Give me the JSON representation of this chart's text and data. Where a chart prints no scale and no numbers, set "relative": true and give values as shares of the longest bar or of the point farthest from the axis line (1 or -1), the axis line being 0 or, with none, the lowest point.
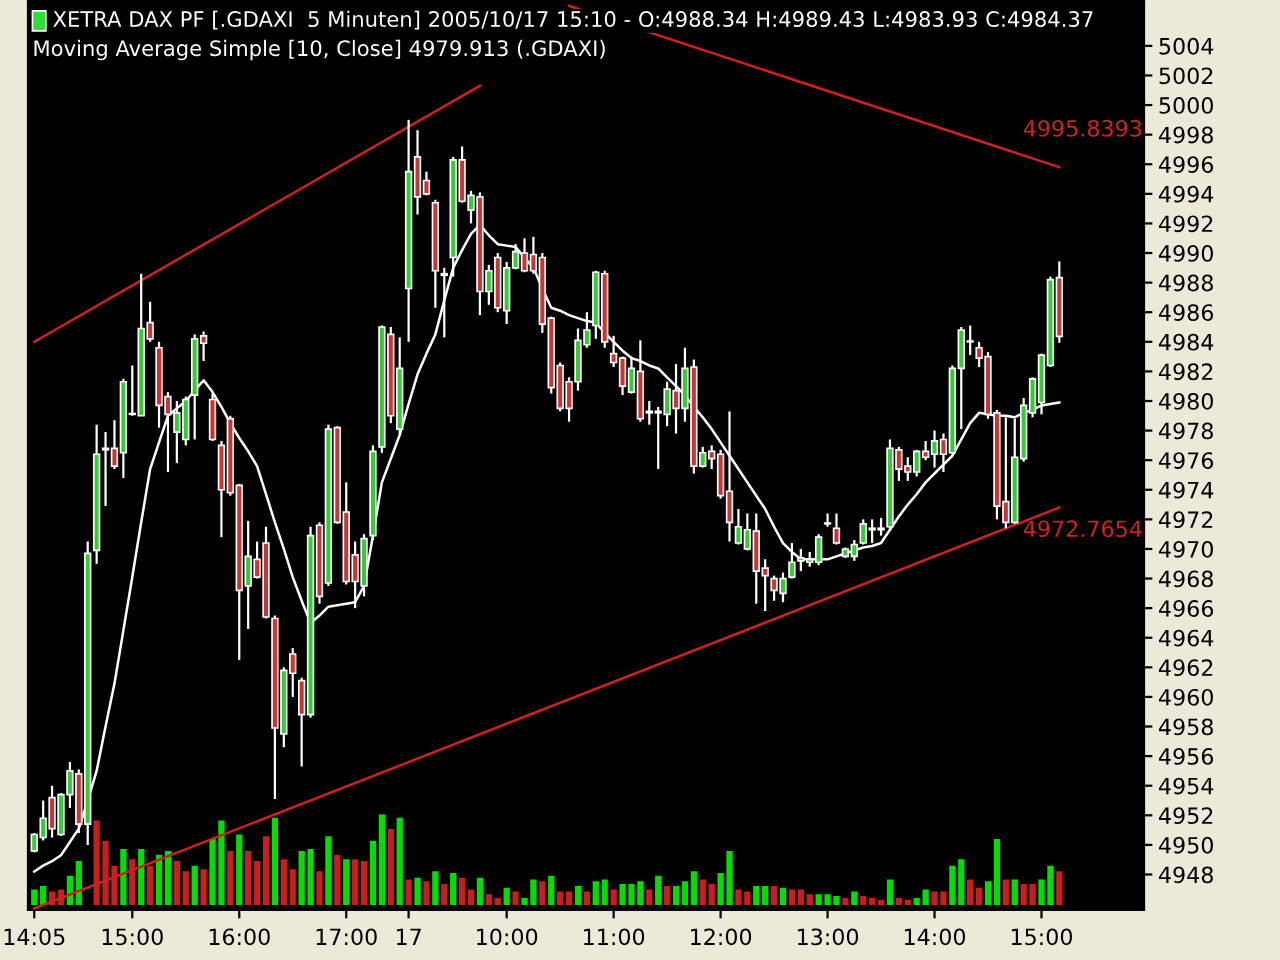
{
  "chart_data": [
    {
      "type": "candlestick",
      "title": "XETRA DAX PF [.GDAXI  5 Minuten] 2005/10/17 15:10 - O:4988.34 H:4989.43 L:4983.93 C:4984.37",
      "subtitle": "Moving Average Simple [10, Close] 4979.913 (.GDAXI)",
      "categories": [
        "14:05",
        null,
        null,
        null,
        null,
        null,
        null,
        null,
        null,
        null,
        null,
        "15:00",
        null,
        null,
        null,
        null,
        null,
        null,
        null,
        null,
        null,
        null,
        null,
        "16:00",
        null,
        null,
        null,
        null,
        null,
        null,
        null,
        null,
        null,
        null,
        null,
        "17:00",
        null,
        null,
        null,
        null,
        null,
        null,
        "17",
        null,
        null,
        null,
        null,
        null,
        null,
        null,
        null,
        null,
        null,
        "10:00",
        null,
        null,
        null,
        null,
        null,
        null,
        null,
        null,
        null,
        null,
        null,
        "11:00",
        null,
        null,
        null,
        null,
        null,
        null,
        null,
        null,
        null,
        null,
        null,
        "12:00",
        null,
        null,
        null,
        null,
        null,
        null,
        null,
        null,
        null,
        null,
        null,
        "13:00",
        null,
        null,
        null,
        null,
        null,
        null,
        null,
        null,
        null,
        null,
        null,
        "14:00",
        null,
        null,
        null,
        null,
        null,
        null,
        null,
        null,
        null,
        null,
        null,
        "15:00",
        null,
        null
      ],
      "ylim": [
        4945.6,
        5007.1
      ],
      "yticks": [
        4948,
        4950,
        4952,
        4954,
        4956,
        4958,
        4960,
        4962,
        4964,
        4966,
        4968,
        4970,
        4972,
        4974,
        4976,
        4978,
        4980,
        4982,
        4984,
        4986,
        4988,
        4990,
        4992,
        4994,
        4996,
        4998,
        5000,
        5002,
        5004
      ],
      "series": [
        {
          "type": "candlestick",
          "ohlc": [
            [
              4949.6,
              4950.8,
              4949.5,
              4950.7
            ],
            [
              4950.5,
              4953.0,
              4950.3,
              4951.8
            ],
            [
              4953.2,
              4954.0,
              4950.5,
              4951.1
            ],
            [
              4950.7,
              4953.5,
              4950.6,
              4953.4
            ],
            [
              4953.4,
              4955.6,
              4952.5,
              4955.0
            ],
            [
              4954.8,
              4955.1,
              4950.8,
              4951.4
            ],
            [
              4951.4,
              4970.5,
              4950.0,
              4969.7
            ],
            [
              4969.9,
              4978.4,
              4969.0,
              4976.4
            ],
            [
              4976.7,
              4977.9,
              4972.9,
              4976.8
            ],
            [
              4976.8,
              4978.7,
              4975.4,
              4975.6
            ],
            [
              4976.5,
              4981.5,
              4974.8,
              4981.3
            ],
            [
              4979.1,
              4982.4,
              4979.0,
              4979.1
            ],
            [
              4979.0,
              4988.6,
              4979.0,
              4984.9
            ],
            [
              4985.3,
              4986.7,
              4984.0,
              4984.2
            ],
            [
              4983.6,
              4984.0,
              4978.2,
              4979.7
            ],
            [
              4980.3,
              4980.6,
              4975.2,
              4979.1
            ],
            [
              4977.9,
              4980.0,
              4975.8,
              4979.2
            ],
            [
              4977.4,
              4980.3,
              4977.0,
              4980.1
            ],
            [
              4980.4,
              4984.5,
              4977.4,
              4984.2
            ],
            [
              4984.4,
              4984.7,
              4982.7,
              4983.9
            ],
            [
              4980.1,
              4980.5,
              4977.3,
              4977.4
            ],
            [
              4977.0,
              4977.3,
              4970.8,
              4974.0
            ],
            [
              4978.8,
              4979.0,
              4973.6,
              4973.8
            ],
            [
              4974.3,
              4974.4,
              4962.5,
              4967.2
            ],
            [
              4967.5,
              4971.9,
              4964.6,
              4969.5
            ],
            [
              4969.3,
              4970.5,
              4968.0,
              4968.1
            ],
            [
              4970.4,
              4971.5,
              4965.3,
              4965.4
            ],
            [
              4965.3,
              4965.5,
              4953.1,
              4957.9
            ],
            [
              4957.5,
              4962.0,
              4956.6,
              4961.8
            ],
            [
              4962.9,
              4963.3,
              4960.0,
              4961.6
            ],
            [
              4961.1,
              4961.3,
              4955.3,
              4958.8
            ],
            [
              4958.8,
              4971.5,
              4958.6,
              4970.9
            ],
            [
              4971.6,
              4971.8,
              4966.3,
              4966.8
            ],
            [
              4967.7,
              4978.4,
              4967.5,
              4978.1
            ],
            [
              4978.2,
              4978.3,
              4971.7,
              4971.8
            ],
            [
              4972.5,
              4974.5,
              4967.6,
              4967.8
            ],
            [
              4969.6,
              4970.5,
              4966.0,
              4967.8
            ],
            [
              4967.5,
              4971.0,
              4966.8,
              4970.7
            ],
            [
              4970.9,
              4977.0,
              4970.6,
              4976.6
            ],
            [
              4976.9,
              4985.1,
              4976.5,
              4985.0
            ],
            [
              4984.5,
              4985.0,
              4978.5,
              4979.0
            ],
            [
              4978.1,
              4984.3,
              4977.8,
              4982.2
            ],
            [
              4987.6,
              4999.0,
              4984.0,
              4995.5
            ],
            [
              4996.5,
              4998.3,
              4992.6,
              4993.8
            ],
            [
              4994.9,
              4995.5,
              4993.9,
              4994.0
            ],
            [
              4993.4,
              4993.6,
              4986.3,
              4988.8
            ],
            [
              4988.6,
              4989.0,
              4984.3,
              4988.5
            ],
            [
              4989.7,
              4996.5,
              4988.4,
              4996.3
            ],
            [
              4996.3,
              4997.2,
              4993.4,
              4993.5
            ],
            [
              4992.9,
              4994.2,
              4992.0,
              4993.9
            ],
            [
              4993.8,
              4994.1,
              4985.8,
              4987.4
            ],
            [
              4987.4,
              4989.2,
              4986.5,
              4988.8
            ],
            [
              4989.7,
              4990.0,
              4986.0,
              4986.3
            ],
            [
              4986.1,
              4989.4,
              4985.2,
              4989.0
            ],
            [
              4989.0,
              4990.6,
              4988.9,
              4990.1
            ],
            [
              4990.0,
              4991.0,
              4988.7,
              4988.8
            ],
            [
              4989.9,
              4991.1,
              4988.6,
              4988.8
            ],
            [
              4989.7,
              4990.0,
              4984.6,
              4985.2
            ],
            [
              4985.6,
              4985.7,
              4980.5,
              4980.9
            ],
            [
              4982.4,
              4982.6,
              4979.3,
              4979.5
            ],
            [
              4981.3,
              4981.6,
              4978.6,
              4979.5
            ],
            [
              4981.3,
              4984.9,
              4980.7,
              4984.1
            ],
            [
              4983.8,
              4986.0,
              4983.6,
              4984.8
            ],
            [
              4985.1,
              4988.8,
              4984.2,
              4988.7
            ],
            [
              4988.6,
              4988.8,
              4983.6,
              4984.0
            ],
            [
              4983.2,
              4984.4,
              4982.3,
              4982.6
            ],
            [
              4982.9,
              4983.0,
              4980.4,
              4981.0
            ],
            [
              4980.6,
              4983.0,
              4980.5,
              4982.2
            ],
            [
              4982.0,
              4984.1,
              4978.6,
              4978.8
            ],
            [
              4979.2,
              4980.0,
              4978.4,
              4979.3
            ],
            [
              4979.2,
              4979.6,
              4975.4,
              4979.3
            ],
            [
              4979.1,
              4981.3,
              4978.3,
              4980.8
            ],
            [
              4980.7,
              4982.5,
              4977.8,
              4979.5
            ],
            [
              4979.5,
              4983.6,
              4978.6,
              4982.2
            ],
            [
              4982.3,
              4982.8,
              4975.1,
              4975.6
            ],
            [
              4975.6,
              4976.9,
              4975.5,
              4976.5
            ],
            [
              4976.6,
              4977.0,
              4975.4,
              4976.1
            ],
            [
              4976.4,
              4976.7,
              4973.4,
              4973.6
            ],
            [
              4973.9,
              4979.3,
              4970.5,
              4971.8
            ],
            [
              4970.4,
              4972.7,
              4970.3,
              4971.5
            ],
            [
              4970.0,
              4972.4,
              4969.9,
              4971.3
            ],
            [
              4971.2,
              4972.4,
              4966.3,
              4968.5
            ],
            [
              4968.7,
              4969.3,
              4965.8,
              4968.2
            ],
            [
              4968.0,
              4968.2,
              4966.5,
              4967.2
            ],
            [
              4967.0,
              4968.4,
              4966.4,
              4968.0
            ],
            [
              4968.1,
              4970.4,
              4968.0,
              4969.1
            ],
            [
              4969.2,
              4970.0,
              4968.5,
              4969.4
            ],
            [
              4969.1,
              4969.8,
              4968.8,
              4969.3
            ],
            [
              4969.1,
              4971.0,
              4968.9,
              4970.8
            ],
            [
              4971.7,
              4972.4,
              4971.5,
              4971.7
            ],
            [
              4971.4,
              4972.4,
              4970.3,
              4970.4
            ],
            [
              4969.5,
              4970.1,
              4969.4,
              4970.0
            ],
            [
              4969.5,
              4970.6,
              4969.2,
              4970.3
            ],
            [
              4970.4,
              4972.0,
              4970.3,
              4971.7
            ],
            [
              4971.3,
              4972.0,
              4970.4,
              4971.4
            ],
            [
              4971.3,
              4972.1,
              4970.9,
              4971.4
            ],
            [
              4971.5,
              4977.4,
              4971.3,
              4976.8
            ],
            [
              4976.7,
              4976.9,
              4974.6,
              4975.4
            ],
            [
              4975.6,
              4976.2,
              4974.6,
              4975.2
            ],
            [
              4975.2,
              4976.7,
              4974.9,
              4976.6
            ],
            [
              4976.6,
              4977.3,
              4976.0,
              4976.2
            ],
            [
              4976.4,
              4978.0,
              4975.5,
              4977.3
            ],
            [
              4977.4,
              4977.8,
              4975.2,
              4976.4
            ],
            [
              4976.5,
              4982.4,
              4976.4,
              4982.2
            ],
            [
              4982.2,
              4985.0,
              4978.1,
              4984.8
            ],
            [
              4984.0,
              4985.1,
              4983.1,
              4984.0
            ],
            [
              4983.6,
              4984.0,
              4982.3,
              4982.9
            ],
            [
              4983.0,
              4983.3,
              4978.8,
              4979.1
            ],
            [
              4979.2,
              4979.4,
              4972.0,
              4972.9
            ],
            [
              4973.2,
              4978.9,
              4971.4,
              4971.8
            ],
            [
              4971.8,
              4978.8,
              4971.7,
              4976.2
            ],
            [
              4976.1,
              4980.2,
              4975.9,
              4979.7
            ],
            [
              4979.2,
              4981.6,
              4978.9,
              4981.5
            ],
            [
              4979.9,
              4983.2,
              4979.1,
              4983.1
            ],
            [
              4982.4,
              4988.4,
              4982.3,
              4988.2
            ],
            [
              4988.34,
              4989.43,
              4983.93,
              4984.37
            ]
          ],
          "colors": [
            "#33cc33",
            "#33cc33",
            "#cc3333",
            "#33cc33",
            "#33cc33",
            "#cc3333",
            "#33cc33",
            "#33cc33",
            "#33cc33",
            "#cc3333",
            "#33cc33",
            "#33cc33",
            "#33cc33",
            "#cc3333",
            "#cc3333",
            "#cc3333",
            "#33cc33",
            "#33cc33",
            "#33cc33",
            "#cc3333",
            "#cc3333",
            "#cc3333",
            "#cc3333",
            "#cc3333",
            "#33cc33",
            "#cc3333",
            "#cc3333",
            "#cc3333",
            "#33cc33",
            "#cc3333",
            "#cc3333",
            "#33cc33",
            "#cc3333",
            "#33cc33",
            "#cc3333",
            "#cc3333",
            "#cc3333",
            "#33cc33",
            "#33cc33",
            "#33cc33",
            "#cc3333",
            "#33cc33",
            "#33cc33",
            "#cc3333",
            "#cc3333",
            "#cc3333",
            "#cc3333",
            "#33cc33",
            "#cc3333",
            "#33cc33",
            "#cc3333",
            "#33cc33",
            "#cc3333",
            "#33cc33",
            "#33cc33",
            "#cc3333",
            "#cc3333",
            "#cc3333",
            "#cc3333",
            "#cc3333",
            "#cc3333",
            "#33cc33",
            "#33cc33",
            "#33cc33",
            "#cc3333",
            "#cc3333",
            "#cc3333",
            "#33cc33",
            "#cc3333",
            "#33cc33",
            "#33cc33",
            "#33cc33",
            "#cc3333",
            "#33cc33",
            "#cc3333",
            "#33cc33",
            "#cc3333",
            "#cc3333",
            "#cc3333",
            "#33cc33",
            "#33cc33",
            "#cc3333",
            "#cc3333",
            "#cc3333",
            "#33cc33",
            "#33cc33",
            "#33cc33",
            "#33cc33",
            "#33cc33",
            "#33cc33",
            "#cc3333",
            "#33cc33",
            "#33cc33",
            "#33cc33",
            "#33cc33",
            "#33cc33",
            "#33cc33",
            "#cc3333",
            "#cc3333",
            "#33cc33",
            "#cc3333",
            "#33cc33",
            "#cc3333",
            "#33cc33",
            "#33cc33",
            "#33cc33",
            "#cc3333",
            "#cc3333",
            "#cc3333",
            "#cc3333",
            "#33cc33",
            "#33cc33",
            "#33cc33",
            "#33cc33",
            "#33cc33",
            "#cc3333"
          ]
        },
        {
          "type": "line",
          "color": "#ffffff",
          "values": [
            4948.2,
            4948.6,
            4948.9,
            4949.3,
            4950.2,
            4951.1,
            4953.0,
            4955.0,
            4958.0,
            4960.9,
            4964.5,
            4968.1,
            4971.8,
            4975.4,
            4977.2,
            4979.0,
            4979.5,
            4980.0,
            4980.7,
            4981.4,
            4980.6,
            4979.6,
            4978.5,
            4977.5,
            4976.6,
            4975.6,
            4973.7,
            4971.8,
            4970.0,
            4968.1,
            4966.5,
            4965.0,
            4965.5,
            4966.1,
            4966.2,
            4966.3,
            4966.4,
            4967.5,
            4970.9,
            4974.5,
            4976.1,
            4977.7,
            4979.8,
            4981.8,
            4983.2,
            4984.5,
            4986.8,
            4989.0,
            4990.2,
            4991.3,
            4991.9,
            4991.2,
            4990.6,
            4990.5,
            4990.4,
            4989.7,
            4989.0,
            4987.6,
            4986.3,
            4986.1,
            4985.8,
            4985.6,
            4985.4,
            4985.3,
            4984.6,
            4984.0,
            4983.4,
            4982.9,
            4982.7,
            4982.4,
            4982.2,
            4981.6,
            4981.0,
            4980.4,
            4979.6,
            4978.9,
            4978.1,
            4977.2,
            4976.3,
            4975.4,
            4974.5,
            4973.6,
            4972.7,
            4971.5,
            4970.4,
            4969.8,
            4969.3,
            4969.3,
            4969.3,
            4969.3,
            4969.5,
            4969.7,
            4969.9,
            4970.1,
            4970.2,
            4970.4,
            4971.3,
            4972.2,
            4973.0,
            4973.7,
            4974.5,
            4975.1,
            4975.7,
            4976.3,
            4977.4,
            4978.5,
            4979.2,
            4979.1,
            4979.0,
            4979.0,
            4978.9,
            4979.2,
            4979.4,
            4979.7,
            4979.8,
            4979.9
          ]
        },
        {
          "type": "line",
          "color": "#d02020",
          "values": [
            4984.0,
            null,
            null,
            null,
            null,
            null,
            null,
            null,
            null,
            null,
            null,
            null,
            null,
            null,
            null,
            null,
            null,
            null,
            null,
            null,
            null,
            null,
            null,
            null,
            null,
            null,
            null,
            null,
            null,
            null,
            null,
            null,
            null,
            null,
            null,
            null,
            null,
            null,
            null,
            null,
            null,
            null,
            null,
            null,
            null,
            null,
            null,
            null,
            null,
            null,
            5001.3,
            null,
            null,
            null,
            null,
            null,
            null,
            null,
            null,
            null,
            null,
            null,
            null,
            null,
            null,
            null,
            null,
            null,
            null,
            null,
            null,
            null,
            null,
            null,
            null,
            null,
            null,
            null,
            null,
            null,
            null,
            null,
            null,
            null,
            null,
            null,
            null,
            null,
            null,
            null,
            null,
            null,
            null,
            null,
            null,
            null,
            null,
            null,
            null,
            null,
            null,
            null,
            null,
            null,
            null,
            null,
            null,
            null,
            null,
            null,
            null,
            null,
            null,
            null,
            null,
            null
          ]
        },
        {
          "type": "line",
          "color": "#d02020",
          "values": [
            null,
            null,
            null,
            null,
            null,
            null,
            null,
            null,
            null,
            null,
            null,
            null,
            null,
            null,
            null,
            null,
            null,
            null,
            null,
            null,
            null,
            null,
            null,
            null,
            null,
            null,
            null,
            null,
            null,
            null,
            null,
            null,
            null,
            null,
            null,
            null,
            null,
            null,
            null,
            null,
            null,
            null,
            null,
            null,
            null,
            null,
            null,
            null,
            null,
            null,
            null,
            null,
            null,
            null,
            null,
            null,
            null,
            null,
            null,
            null,
            5006.7,
            null,
            null,
            null,
            null,
            null,
            null,
            null,
            null,
            null,
            null,
            null,
            null,
            null,
            null,
            null,
            null,
            null,
            null,
            null,
            null,
            null,
            null,
            null,
            null,
            null,
            null,
            null,
            null,
            null,
            null,
            null,
            null,
            null,
            null,
            null,
            null,
            null,
            null,
            null,
            null,
            null,
            null,
            null,
            null,
            null,
            null,
            null,
            null,
            null,
            null,
            null,
            null,
            null,
            null,
            4995.8
          ]
        },
        {
          "type": "line",
          "color": "#d02020",
          "values": [
            4945.7,
            null,
            null,
            null,
            null,
            null,
            null,
            null,
            null,
            null,
            null,
            null,
            null,
            null,
            null,
            null,
            null,
            null,
            null,
            null,
            null,
            null,
            null,
            null,
            null,
            null,
            null,
            null,
            null,
            null,
            null,
            null,
            null,
            null,
            null,
            null,
            null,
            null,
            null,
            null,
            null,
            null,
            null,
            null,
            null,
            null,
            null,
            null,
            null,
            null,
            null,
            null,
            null,
            null,
            null,
            null,
            null,
            null,
            null,
            null,
            null,
            null,
            null,
            null,
            null,
            null,
            null,
            null,
            null,
            null,
            null,
            null,
            null,
            null,
            null,
            null,
            null,
            null,
            null,
            null,
            null,
            null,
            null,
            null,
            null,
            null,
            null,
            null,
            null,
            null,
            null,
            null,
            null,
            null,
            null,
            null,
            null,
            null,
            null,
            null,
            null,
            null,
            null,
            null,
            null,
            null,
            null,
            null,
            null,
            null,
            null,
            null,
            null,
            null,
            null,
            4972.8
          ]
        }
      ],
      "annotations": [
        "4995.8393",
        "4972.7654"
      ]
    },
    {
      "type": "bar",
      "relative": true,
      "categories": [
        null,
        null,
        null,
        null,
        null,
        null,
        null,
        null,
        null,
        null,
        null,
        null,
        null,
        null,
        null,
        null,
        null,
        null,
        null,
        null,
        null,
        null,
        null,
        null,
        null,
        null,
        null,
        null,
        null,
        null,
        null,
        null,
        null,
        null,
        null,
        null,
        null,
        null,
        null,
        null,
        null,
        null,
        null,
        null,
        null,
        null,
        null,
        null,
        null,
        null,
        null,
        null,
        null,
        null,
        null,
        null,
        null,
        null,
        null,
        null,
        null,
        null,
        null,
        null,
        null,
        null,
        null,
        null,
        null,
        null,
        null,
        null,
        null,
        null,
        null,
        null,
        null,
        null,
        null,
        null,
        null,
        null,
        null,
        null,
        null,
        null,
        null,
        null,
        null,
        null,
        null,
        null,
        null,
        null,
        null,
        null,
        null,
        null,
        null,
        null,
        null,
        null,
        null,
        null,
        null,
        null,
        null,
        null,
        null,
        null,
        null,
        null,
        null,
        null,
        null,
        null
      ],
      "values": [
        0.18,
        0.22,
        0.16,
        0.18,
        0.33,
        0.49,
        null,
        0.93,
        0.71,
        0.44,
        0.62,
        0.51,
        0.62,
        0.44,
        0.56,
        0.6,
        0.49,
        0.38,
        0.44,
        0.4,
        0.73,
        0.93,
        0.6,
        0.78,
        0.6,
        0.49,
        0.76,
        0.96,
        0.51,
        0.4,
        0.6,
        0.62,
        0.38,
        0.76,
        0.56,
        0.51,
        0.51,
        0.49,
        0.71,
        1,
        0.84,
        0.96,
        0.29,
        0.31,
        0.27,
        0.38,
        0.24,
        0.36,
        0.31,
        0.18,
        0.31,
        0.13,
        0.09,
        0.2,
        0.16,
        0.09,
        0.29,
        0.27,
        0.33,
        0.16,
        0.16,
        0.22,
        0.16,
        0.27,
        0.29,
        0.18,
        0.24,
        0.24,
        0.27,
        0.18,
        0.33,
        0.22,
        0.22,
        0.27,
        0.38,
        0.29,
        0.24,
        0.36,
        0.6,
        0.18,
        0.16,
        0.22,
        0.22,
        0.22,
        0.2,
        0.18,
        0.18,
        0.13,
        0.13,
        0.13,
        0.11,
        0.09,
        0.16,
        0.11,
        0.09,
        0.07,
        0.29,
        0.09,
        0.07,
        0.09,
        0.18,
        0.16,
        0.16,
        0.44,
        0.51,
        0.29,
        0.2,
        0.27,
        0.73,
        0.29,
        0.29,
        0.24,
        0.24,
        0.29,
        0.44,
        0.38
      ],
      "colors": [
        "#00e000",
        "#00e000",
        "#c81e1e",
        "#c81e1e",
        "#00e000",
        "#00e000",
        "#00e000",
        "#c81e1e",
        "#c81e1e",
        "#c81e1e",
        "#00e000",
        "#c81e1e",
        "#00e000",
        "#c81e1e",
        "#00e000",
        "#00e000",
        "#c81e1e",
        "#c81e1e",
        "#00e000",
        "#c81e1e",
        "#00e000",
        "#00e000",
        "#c81e1e",
        "#00e000",
        "#c81e1e",
        "#c81e1e",
        "#c81e1e",
        "#00e000",
        "#c81e1e",
        "#c81e1e",
        "#00e000",
        "#00e000",
        "#c81e1e",
        "#00e000",
        "#c81e1e",
        "#00e000",
        "#c81e1e",
        "#c81e1e",
        "#00e000",
        "#00e000",
        "#c81e1e",
        "#00e000",
        "#c81e1e",
        "#00e000",
        "#c81e1e",
        "#00e000",
        "#c81e1e",
        "#00e000",
        "#c81e1e",
        "#c81e1e",
        "#00e000",
        "#c81e1e",
        "#c81e1e",
        "#00e000",
        "#c81e1e",
        "#00e000",
        "#00e000",
        "#c81e1e",
        "#00e000",
        "#c81e1e",
        "#c81e1e",
        "#00e000",
        "#c81e1e",
        "#00e000",
        "#00e000",
        "#c81e1e",
        "#00e000",
        "#00e000",
        "#00e000",
        "#c81e1e",
        "#00e000",
        "#c81e1e",
        "#00e000",
        "#00e000",
        "#00e000",
        "#c81e1e",
        "#c81e1e",
        "#00e000",
        "#00e000",
        "#c81e1e",
        "#c81e1e",
        "#00e000",
        "#00e000",
        "#c81e1e",
        "#00e000",
        "#c81e1e",
        "#c81e1e",
        "#c81e1e",
        "#00e000",
        "#00e000",
        "#00e000",
        "#c81e1e",
        "#00e000",
        "#c81e1e",
        "#c81e1e",
        "#c81e1e",
        "#00e000",
        "#c81e1e",
        "#c81e1e",
        "#00e000",
        "#00e000",
        "#c81e1e",
        "#c81e1e",
        "#00e000",
        "#00e000",
        "#c81e1e",
        "#c81e1e",
        "#00e000",
        "#00e000",
        "#c81e1e",
        "#00e000",
        "#c81e1e",
        "#c81e1e",
        "#00e000",
        "#00e000",
        "#c81e1e"
      ]
    }
  ]
}
